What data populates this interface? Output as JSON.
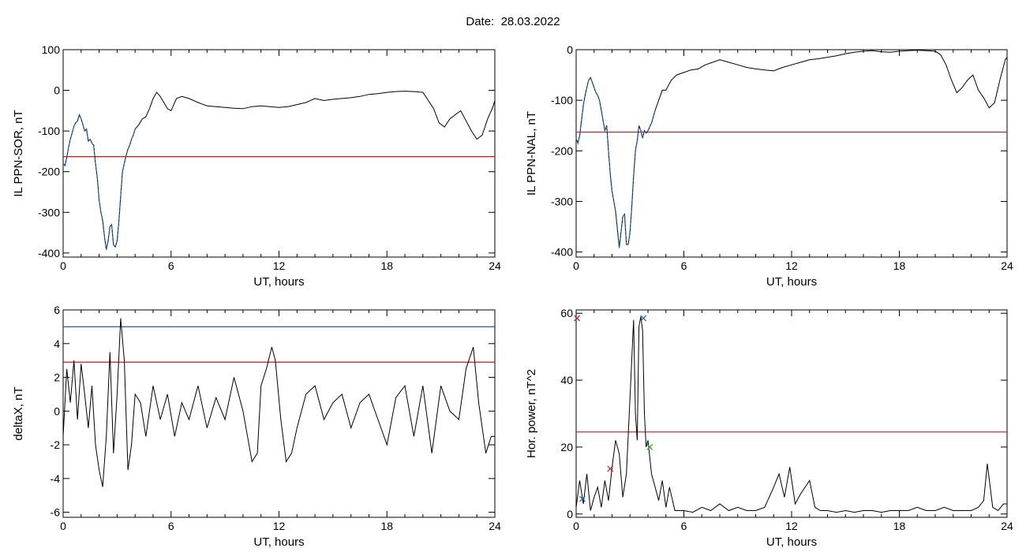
{
  "header": {
    "date_label": "Date:",
    "date_value": "28.03.2022"
  },
  "colors": {
    "threshold": "#e01010",
    "blue": "#1565c0",
    "green": "#22aa22",
    "trace": "#000000"
  },
  "chart_data": [
    {
      "id": "p1",
      "type": "line",
      "ylabel": "IL PPN-SOR, nT",
      "xlabel": "UT, hours",
      "xlim": [
        0,
        24
      ],
      "ylim": [
        -410,
        100
      ],
      "xticks": [
        0,
        6,
        12,
        18,
        24
      ],
      "yticks": [
        100,
        0,
        -100,
        -200,
        -300,
        -400
      ],
      "threshold": -163,
      "highlight": {
        "color": "blue",
        "range": [
          0,
          4.0
        ]
      },
      "series": [
        {
          "x": [
            0,
            0.1,
            0.2,
            0.3,
            0.4,
            0.5,
            0.6,
            0.7,
            0.8,
            0.9,
            1.0,
            1.1,
            1.2,
            1.3,
            1.4,
            1.5,
            1.6,
            1.7,
            1.8,
            1.9,
            2.0,
            2.1,
            2.2,
            2.3,
            2.4,
            2.5,
            2.6,
            2.7,
            2.8,
            2.9,
            3.0,
            3.1,
            3.2,
            3.3,
            3.4,
            3.5,
            3.6,
            3.7,
            3.8,
            3.9,
            4.0,
            4.2,
            4.4,
            4.6,
            4.8,
            5.0,
            5.2,
            5.4,
            5.6,
            5.8,
            6.0,
            6.3,
            6.6,
            7.0,
            7.5,
            8.0,
            8.5,
            9.0,
            9.5,
            10.0,
            10.5,
            11.0,
            11.5,
            12.0,
            12.5,
            13.0,
            13.5,
            14.0,
            14.5,
            15.0,
            15.5,
            16.0,
            16.5,
            17.0,
            17.5,
            18.0,
            18.5,
            19.0,
            19.5,
            20.0,
            20.3,
            20.6,
            20.9,
            21.2,
            21.5,
            21.8,
            22.1,
            22.4,
            22.7,
            23.0,
            23.3,
            23.6,
            23.9,
            24.0
          ],
          "y": [
            -180,
            -185,
            -165,
            -140,
            -120,
            -105,
            -88,
            -80,
            -75,
            -60,
            -70,
            -85,
            -100,
            -95,
            -125,
            -120,
            -130,
            -135,
            -180,
            -215,
            -270,
            -300,
            -320,
            -360,
            -392,
            -370,
            -335,
            -330,
            -380,
            -385,
            -370,
            -320,
            -260,
            -200,
            -180,
            -160,
            -145,
            -135,
            -120,
            -110,
            -95,
            -85,
            -70,
            -65,
            -45,
            -20,
            -5,
            -15,
            -30,
            -45,
            -50,
            -20,
            -15,
            -20,
            -30,
            -38,
            -40,
            -42,
            -44,
            -45,
            -40,
            -38,
            -40,
            -42,
            -40,
            -35,
            -30,
            -20,
            -25,
            -22,
            -20,
            -18,
            -15,
            -10,
            -8,
            -5,
            -3,
            -2,
            -3,
            -5,
            -25,
            -45,
            -80,
            -90,
            -70,
            -60,
            -50,
            -75,
            -100,
            -120,
            -110,
            -70,
            -40,
            -25
          ]
        }
      ]
    },
    {
      "id": "p2",
      "type": "line",
      "ylabel": "IL PPN-NAL, nT",
      "xlabel": "UT, hours",
      "xlim": [
        0,
        24
      ],
      "ylim": [
        -410,
        0
      ],
      "xticks": [
        0,
        6,
        12,
        18,
        24
      ],
      "yticks": [
        0,
        -100,
        -200,
        -300,
        -400
      ],
      "threshold": -163,
      "highlight": {
        "color": "blue",
        "range": [
          0,
          4.5
        ]
      },
      "series": [
        {
          "x": [
            0,
            0.1,
            0.2,
            0.3,
            0.4,
            0.5,
            0.6,
            0.7,
            0.8,
            0.9,
            1.0,
            1.1,
            1.2,
            1.3,
            1.4,
            1.5,
            1.6,
            1.7,
            1.8,
            1.9,
            2.0,
            2.1,
            2.2,
            2.3,
            2.4,
            2.5,
            2.6,
            2.7,
            2.8,
            2.9,
            3.0,
            3.1,
            3.2,
            3.3,
            3.4,
            3.5,
            3.6,
            3.7,
            3.8,
            3.9,
            4.0,
            4.2,
            4.4,
            4.6,
            4.8,
            5.0,
            5.3,
            5.6,
            6.0,
            6.4,
            6.8,
            7.2,
            7.6,
            8.0,
            8.5,
            9.0,
            9.5,
            10.0,
            10.5,
            11.0,
            11.5,
            12.0,
            12.5,
            13.0,
            13.5,
            14.0,
            14.5,
            15.0,
            15.5,
            16.0,
            16.5,
            17.0,
            17.5,
            18.0,
            18.5,
            19.0,
            19.5,
            20.0,
            20.3,
            20.6,
            20.9,
            21.2,
            21.5,
            21.8,
            22.1,
            22.4,
            22.7,
            23.0,
            23.3,
            23.6,
            23.9,
            24.0
          ],
          "y": [
            -175,
            -185,
            -170,
            -140,
            -110,
            -90,
            -75,
            -60,
            -55,
            -65,
            -75,
            -85,
            -90,
            -100,
            -120,
            -140,
            -160,
            -150,
            -200,
            -245,
            -280,
            -300,
            -320,
            -355,
            -392,
            -360,
            -330,
            -325,
            -385,
            -385,
            -360,
            -310,
            -250,
            -200,
            -180,
            -150,
            -160,
            -175,
            -160,
            -165,
            -160,
            -145,
            -120,
            -100,
            -80,
            -80,
            -60,
            -50,
            -45,
            -40,
            -38,
            -30,
            -25,
            -20,
            -25,
            -30,
            -35,
            -38,
            -40,
            -42,
            -35,
            -30,
            -25,
            -20,
            -18,
            -15,
            -12,
            -8,
            -5,
            -3,
            -2,
            -4,
            -5,
            -3,
            -2,
            -1,
            -2,
            -3,
            -10,
            -30,
            -60,
            -85,
            -75,
            -60,
            -50,
            -80,
            -95,
            -115,
            -105,
            -60,
            -20,
            -15
          ]
        }
      ]
    },
    {
      "id": "p3",
      "type": "line",
      "ylabel": "deltaX, nT",
      "xlabel": "UT, hours",
      "xlim": [
        0,
        24
      ],
      "ylim": [
        -6.3,
        6
      ],
      "xticks": [
        0,
        6,
        12,
        18,
        24
      ],
      "yticks": [
        6,
        4,
        2,
        0,
        -2,
        -4,
        -6
      ],
      "threshold": 2.9,
      "threshold2": 5.0,
      "series": [
        {
          "x": [
            0,
            0.2,
            0.4,
            0.6,
            0.8,
            1.0,
            1.2,
            1.4,
            1.6,
            1.8,
            2.0,
            2.2,
            2.4,
            2.6,
            2.8,
            3.0,
            3.2,
            3.4,
            3.6,
            3.8,
            4.0,
            4.3,
            4.6,
            5.0,
            5.4,
            5.8,
            6.2,
            6.6,
            7.0,
            7.5,
            8.0,
            8.5,
            9.0,
            9.5,
            10.0,
            10.5,
            10.8,
            11.0,
            11.3,
            11.6,
            11.8,
            12.1,
            12.4,
            12.7,
            13.0,
            13.5,
            14.0,
            14.5,
            15.0,
            15.5,
            16.0,
            16.5,
            17.0,
            17.5,
            18.0,
            18.5,
            19.0,
            19.5,
            20.0,
            20.5,
            21.0,
            21.5,
            22.0,
            22.4,
            22.8,
            23.1,
            23.5,
            23.8,
            24.0
          ],
          "y": [
            -1.5,
            2.5,
            0.5,
            3.0,
            -0.5,
            2.8,
            1.0,
            -1.0,
            1.5,
            -2.0,
            -3.5,
            -4.5,
            -1.5,
            3.5,
            -2.5,
            1.0,
            5.5,
            3.0,
            -3.5,
            -2.0,
            1.0,
            0.5,
            -1.5,
            1.5,
            -0.5,
            1.0,
            -1.5,
            0.5,
            -0.5,
            1.5,
            -1.0,
            0.8,
            -0.5,
            2.0,
            0.0,
            -3.0,
            -2.5,
            1.5,
            2.5,
            3.8,
            3.0,
            -0.5,
            -3.0,
            -2.5,
            -1.0,
            1.0,
            1.5,
            -0.5,
            0.5,
            1.0,
            -1.0,
            0.5,
            1.0,
            -0.5,
            -2.0,
            0.8,
            1.5,
            -1.5,
            1.5,
            -2.5,
            1.5,
            0.0,
            -0.5,
            2.5,
            3.8,
            0.5,
            -2.5,
            -1.5,
            -1.5
          ]
        }
      ]
    },
    {
      "id": "p4",
      "type": "line",
      "ylabel": "Hor. power, nT^2",
      "xlabel": "UT, hours",
      "xlim": [
        0,
        24
      ],
      "ylim": [
        -1,
        61
      ],
      "xticks": [
        0,
        6,
        12,
        18,
        24
      ],
      "yticks": [
        60,
        40,
        20,
        0
      ],
      "threshold": 24.5,
      "markers": [
        {
          "x": 0.05,
          "y": 58.5,
          "color": "threshold"
        },
        {
          "x": 1.9,
          "y": 13.5,
          "color": "threshold"
        },
        {
          "x": 3.75,
          "y": 58.5,
          "color": "blue"
        },
        {
          "x": 4.1,
          "y": 20,
          "color": "green"
        },
        {
          "x": 0.35,
          "y": 4.5,
          "color": "blue"
        }
      ],
      "series": [
        {
          "x": [
            0,
            0.2,
            0.4,
            0.6,
            0.8,
            1.0,
            1.2,
            1.4,
            1.6,
            1.8,
            2.0,
            2.2,
            2.4,
            2.6,
            2.8,
            3.0,
            3.2,
            3.3,
            3.4,
            3.5,
            3.6,
            3.7,
            3.8,
            3.9,
            4.0,
            4.2,
            4.4,
            4.6,
            4.8,
            5.0,
            5.2,
            5.5,
            6.0,
            6.5,
            7.0,
            7.5,
            8.0,
            8.5,
            9.0,
            9.5,
            10.0,
            10.5,
            11.0,
            11.3,
            11.6,
            11.9,
            12.2,
            12.5,
            13.0,
            13.3,
            13.6,
            14.0,
            14.5,
            15.0,
            15.5,
            16.0,
            16.5,
            17.0,
            17.5,
            18.0,
            18.5,
            19.0,
            19.5,
            20.0,
            20.5,
            21.0,
            21.5,
            22.0,
            22.4,
            22.7,
            22.9,
            23.2,
            23.5,
            23.8,
            24.0
          ],
          "y": [
            2,
            10,
            3,
            12,
            1,
            5,
            8,
            2,
            10,
            4,
            14,
            22,
            18,
            5,
            12,
            35,
            58,
            30,
            22,
            56,
            59,
            55,
            30,
            20,
            22,
            12,
            8,
            4,
            10,
            2,
            8,
            1,
            1,
            0.5,
            2,
            1,
            3,
            1,
            2,
            1,
            1,
            2,
            8,
            12,
            5,
            14,
            3,
            6,
            10,
            2,
            1,
            1,
            0.5,
            1,
            0.5,
            1,
            1,
            0.5,
            1,
            1,
            1,
            2,
            1,
            1,
            2,
            1,
            1,
            1,
            2,
            4,
            15,
            2,
            1,
            3,
            3
          ]
        }
      ]
    }
  ]
}
